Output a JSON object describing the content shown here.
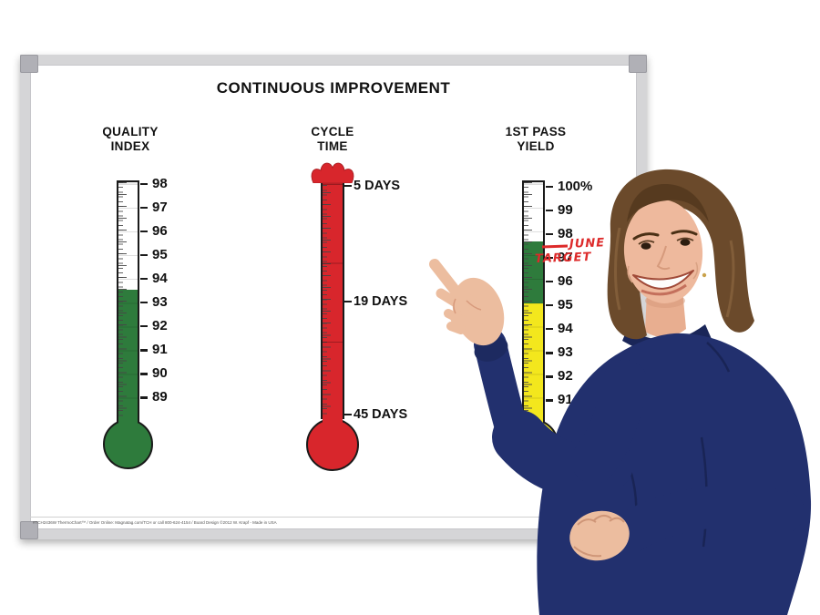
{
  "page": {
    "background_color": "#ffffff"
  },
  "board": {
    "title": "CONTINUOUS IMPROVEMENT",
    "frame_color": "#d5d5d7",
    "surface_color": "#ffffff",
    "fine_print": "#TCH2436W ThermoChart™ / Order Online: Magnatag.com/TCH or call 800-624-4154 / Board Design ©2012 W. Krapf - Made in USA",
    "thermometers": [
      {
        "title_line1": "QUALITY",
        "title_line2": "INDEX",
        "tick_labels": [
          "98",
          "97",
          "96",
          "95",
          "94",
          "93",
          "92",
          "91",
          "90",
          "89"
        ],
        "fill_color": "#2e7b3c",
        "fill_level": "93.6"
      },
      {
        "title_line1": "CYCLE",
        "title_line2": "TIME",
        "scale_labels": [
          "5 DAYS",
          "19 DAYS",
          "45 DAYS"
        ],
        "fill_color": "#d8262c",
        "fill_level": "full — red column overflows past 5 DAYS with burst at top"
      },
      {
        "title_line1": "1ST PASS",
        "title_line2": "YIELD",
        "tick_labels": [
          "100%",
          "99",
          "98",
          "97",
          "96",
          "95",
          "94",
          "93",
          "92",
          "91"
        ],
        "green_color": "#2e7b3c",
        "yellow_color": "#f3e71d",
        "fill_level": "97.6",
        "annotation": {
          "line1": "JUNE",
          "line2": "TARGET",
          "color": "#dd2a2a",
          "points_at": "97"
        }
      }
    ]
  },
  "person": {
    "description": "smiling woman with shoulder-length brown hair in a navy sweater pointing at the 1st Pass Yield thermometer",
    "sweater_color": "#22306e",
    "hair_color": "#6b4a2b",
    "skin_color": "#eeb99d"
  },
  "chart_data": [
    {
      "type": "bar",
      "variant": "thermometer",
      "title": "QUALITY INDEX",
      "orientation": "vertical",
      "axis_range": [
        89,
        98
      ],
      "tick_step": 1,
      "tick_labels": [
        98,
        97,
        96,
        95,
        94,
        93,
        92,
        91,
        90,
        89
      ],
      "value": 93.6,
      "fill_color": "#2e7b3c"
    },
    {
      "type": "bar",
      "variant": "thermometer",
      "title": "CYCLE TIME",
      "orientation": "vertical",
      "tick_labels": [
        "5 DAYS",
        "19 DAYS",
        "45 DAYS"
      ],
      "value": "tube completely full to overflow (at/above 5 DAYS mark)",
      "fill_color": "#d8262c"
    },
    {
      "type": "bar",
      "variant": "thermometer",
      "title": "1ST PASS YIELD",
      "orientation": "vertical",
      "axis_range_visible": [
        91,
        100
      ],
      "tick_labels": [
        "100%",
        99,
        98,
        97,
        96,
        95,
        94,
        93,
        92,
        91
      ],
      "value": 97.6,
      "segments": [
        {
          "range": [
            95,
            97.6
          ],
          "color": "#2e7b3c"
        },
        {
          "range": [
            "below visible scale",
            95
          ],
          "color": "#f3e71d"
        }
      ],
      "annotation": "JUNE TARGET written in red marker at ≈97",
      "note": "lower tube and bulb occluded by presenter's arm"
    }
  ]
}
